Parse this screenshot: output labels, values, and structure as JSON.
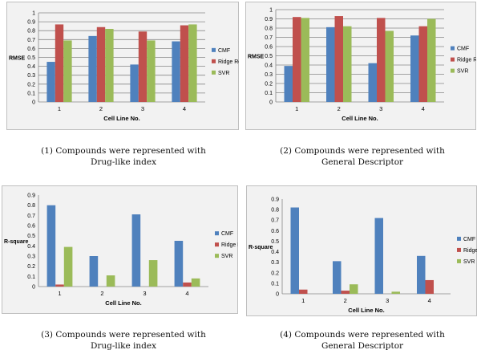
{
  "colors": {
    "CMF": "#4f81bd",
    "Ridge Regression": "#c0504d",
    "SVR": "#9bbb59",
    "grid": "#878787",
    "frame": "#bfbfbf",
    "background": "#f2f2f2"
  },
  "chart_data": [
    {
      "type": "bar",
      "xlabel": "Cell Line No.",
      "ylabel": "RMSE",
      "ylim": [
        0,
        1
      ],
      "yticks": [
        "0",
        "0.1",
        "0.2",
        "0.3",
        "0.4",
        "0.5",
        "0.6",
        "0.7",
        "0.8",
        "0.9",
        "1"
      ],
      "categories": [
        "1",
        "2",
        "3",
        "4"
      ],
      "grid": true,
      "legend": "right",
      "series": [
        {
          "name": "CMF",
          "values": [
            0.45,
            0.74,
            0.42,
            0.68
          ]
        },
        {
          "name": "Ridge Regression",
          "values": [
            0.87,
            0.84,
            0.79,
            0.86
          ]
        },
        {
          "name": "SVR",
          "values": [
            0.69,
            0.82,
            0.69,
            0.87
          ]
        }
      ],
      "caption_lines": [
        "(1) Compounds were represented with",
        "Drug-like index"
      ]
    },
    {
      "type": "bar",
      "xlabel": "Cell Line No.",
      "ylabel": "RMSE",
      "ylim": [
        0,
        1
      ],
      "yticks": [
        "0",
        "0.1",
        "0.2",
        "0.3",
        "0.4",
        "0.5",
        "0.6",
        "0.7",
        "0.8",
        "0.9",
        "1"
      ],
      "categories": [
        "1",
        "2",
        "3",
        "4"
      ],
      "grid": true,
      "legend": "right",
      "series": [
        {
          "name": "CMF",
          "values": [
            0.39,
            0.81,
            0.42,
            0.72
          ]
        },
        {
          "name": "Ridge Regression",
          "values": [
            0.92,
            0.93,
            0.91,
            0.82
          ]
        },
        {
          "name": "SVR",
          "values": [
            0.91,
            0.82,
            0.77,
            0.9
          ]
        }
      ],
      "caption_lines": [
        "(2) Compounds were represented with",
        "General Descriptor"
      ]
    },
    {
      "type": "bar",
      "xlabel": "Cell Line No.",
      "ylabel": "R-square",
      "ylim": [
        0,
        0.9
      ],
      "yticks": [
        "0",
        "0.1",
        "0.2",
        "0.3",
        "0.4",
        "0.5",
        "0.6",
        "0.7",
        "0.8",
        "0.9"
      ],
      "categories": [
        "1",
        "2",
        "3",
        "4"
      ],
      "grid": false,
      "legend": "right",
      "series": [
        {
          "name": "CMF",
          "values": [
            0.8,
            0.3,
            0.71,
            0.45
          ]
        },
        {
          "name": "Ridge Regression",
          "values": [
            0.02,
            0.0,
            0.0,
            0.04
          ]
        },
        {
          "name": "SVR",
          "values": [
            0.39,
            0.11,
            0.26,
            0.08
          ]
        }
      ],
      "caption_lines": [
        "(3) Compounds were represented with",
        "Drug-like index"
      ]
    },
    {
      "type": "bar",
      "xlabel": "Cell Line No.",
      "ylabel": "R-square",
      "ylim": [
        0,
        0.9
      ],
      "yticks": [
        "0",
        "0.1",
        "0.2",
        "0.3",
        "0.4",
        "0.5",
        "0.6",
        "0.7",
        "0.8",
        "0.9"
      ],
      "categories": [
        "1",
        "2",
        "3",
        "4"
      ],
      "grid": false,
      "legend": "right",
      "series": [
        {
          "name": "CMF",
          "values": [
            0.82,
            0.31,
            0.72,
            0.36
          ]
        },
        {
          "name": "Ridge Regression",
          "values": [
            0.04,
            0.03,
            0.0,
            0.13
          ]
        },
        {
          "name": "SVR",
          "values": [
            0.0,
            0.09,
            0.02,
            0.0
          ]
        }
      ],
      "caption_lines": [
        "(4) Compounds were represented with",
        "General Descriptor"
      ]
    }
  ]
}
